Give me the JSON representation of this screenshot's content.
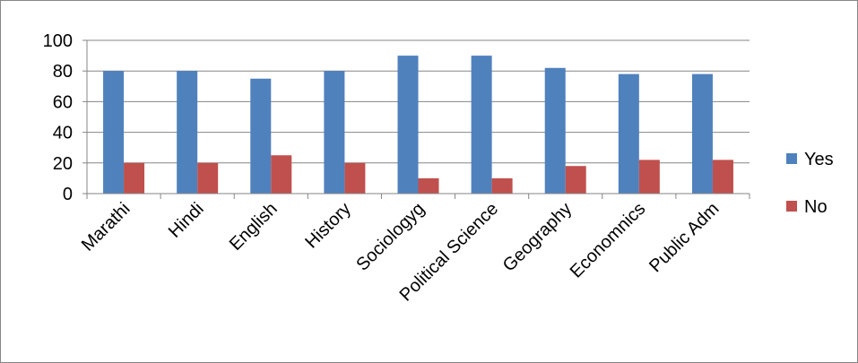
{
  "chart_data": {
    "type": "bar",
    "categories": [
      "Marathi",
      "Hindi",
      "English",
      "History",
      "Sociologyg",
      "Political Science",
      "Geography",
      "Economnics",
      "Public Adm"
    ],
    "series": [
      {
        "name": "Yes",
        "values": [
          80,
          80,
          75,
          80,
          90,
          90,
          82,
          78,
          78
        ],
        "color": "#4F81BD"
      },
      {
        "name": "No",
        "values": [
          20,
          20,
          25,
          20,
          10,
          10,
          18,
          22,
          22
        ],
        "color": "#C0504D"
      }
    ],
    "y_ticks": [
      "0",
      "20",
      "40",
      "60",
      "80",
      "100"
    ],
    "ylim": [
      0,
      100
    ],
    "grid": true,
    "legend": "right",
    "title": "",
    "xlabel": "",
    "ylabel": ""
  }
}
